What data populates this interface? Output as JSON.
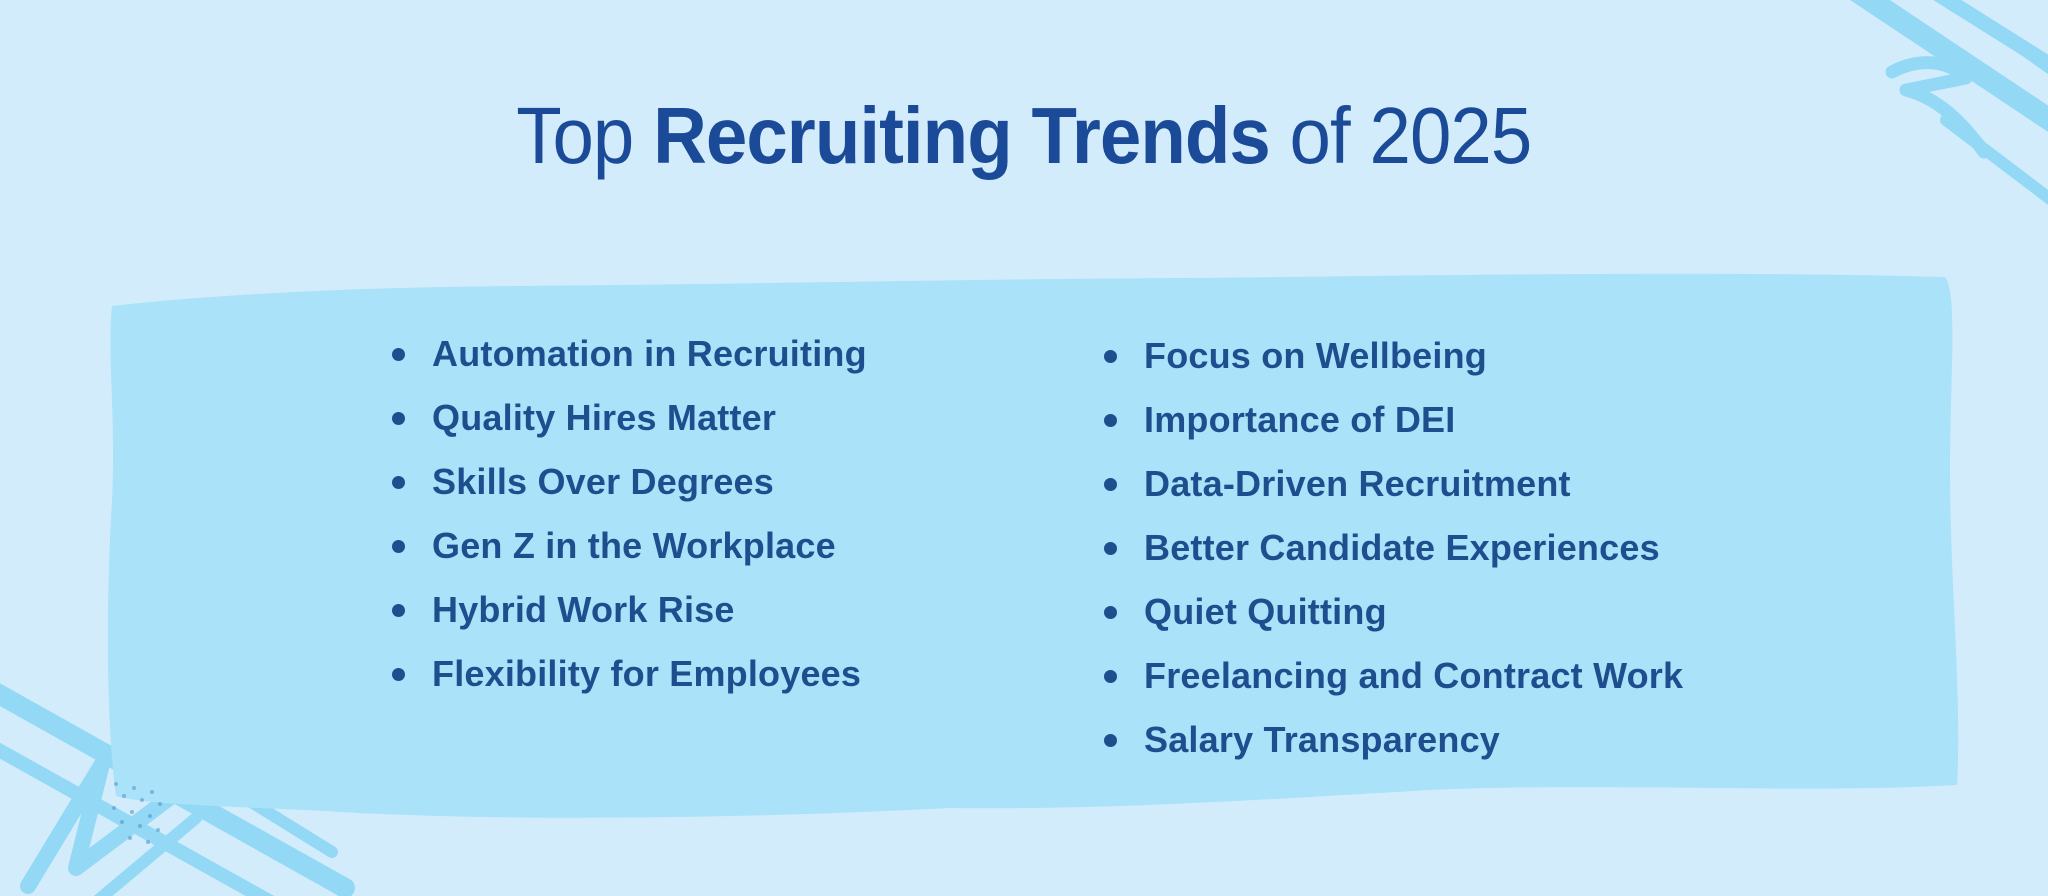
{
  "title": {
    "prefix": "Top ",
    "emphasis": "Recruiting Trends",
    "suffix": " of 2025"
  },
  "lists": {
    "left": [
      "Automation in Recruiting",
      "Quality Hires Matter",
      "Skills Over Degrees",
      "Gen Z in the Workplace",
      "Hybrid Work Rise",
      "Flexibility for Employees"
    ],
    "right": [
      "Focus on Wellbeing",
      "Importance of DEI",
      "Data-Driven Recruitment",
      "Better Candidate Experiences",
      "Quiet Quitting",
      "Freelancing and Contract Work",
      "Salary Transparency"
    ]
  },
  "icons": {
    "bullet": "bullet-dot",
    "decor_top_right": "brush-scribble",
    "decor_bottom_left": "brush-scribble"
  },
  "colors": {
    "background": "#d3ecfb",
    "panel": "#a9e2f9",
    "brush": "#93d9f6",
    "text": "#1f4e8e",
    "title": "#1b4b98",
    "bullet": "#1f4e8e",
    "dots": "#4a90c9"
  }
}
